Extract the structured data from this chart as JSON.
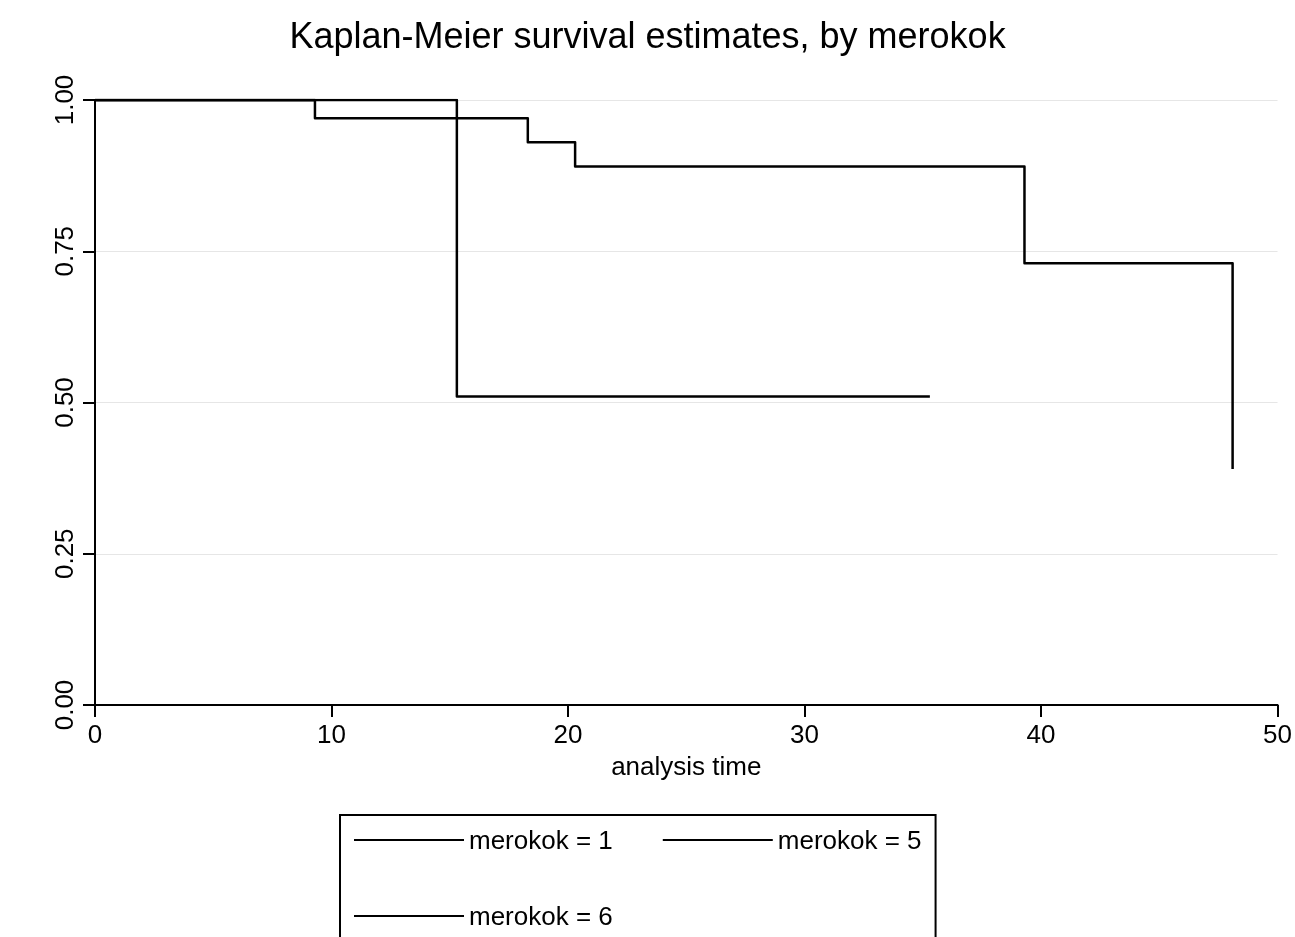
{
  "chart_data": {
    "type": "step",
    "title": "Kaplan-Meier survival estimates, by merokok",
    "xlabel": "analysis time",
    "series": [
      {
        "name": "merokok = 1",
        "color": "#000000",
        "x": [
          0,
          9.3,
          18.3,
          20.3,
          39.3,
          48.1
        ],
        "values": [
          1,
          0.97,
          0.93,
          0.89,
          0.73,
          0.39
        ]
      },
      {
        "name": "merokok = 5",
        "color": "#000000",
        "x": [
          0,
          15.3,
          35.3
        ],
        "values": [
          1,
          0.51,
          0.51
        ]
      },
      {
        "name": "merokok = 6",
        "color": "#000000",
        "x": [
          0,
          9.3
        ],
        "values": [
          1,
          1
        ]
      }
    ],
    "xlim": [
      0,
      50
    ],
    "xticks": [
      0,
      10,
      20,
      30,
      40,
      50
    ],
    "ylim": [
      0,
      1
    ],
    "yticks": [
      {
        "value": 0,
        "label": "0.00"
      },
      {
        "value": 0.25,
        "label": "0.25"
      },
      {
        "value": 0.5,
        "label": "0.50"
      },
      {
        "value": 0.75,
        "label": "0.75"
      },
      {
        "value": 1,
        "label": "1.00"
      }
    ],
    "grid": "y",
    "legend": "bottom",
    "marker": "none",
    "line_style": "solid"
  }
}
